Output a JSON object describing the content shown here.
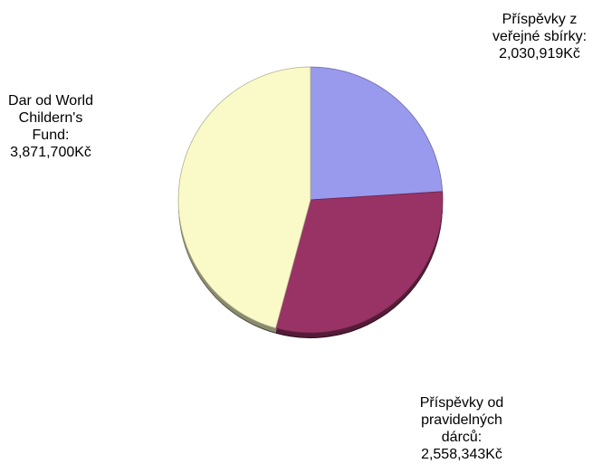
{
  "chart_data": {
    "type": "pie",
    "title": "",
    "legend": "none",
    "slices": [
      {
        "label": "Příspěvky z veřejné sbírky",
        "value": 2030919,
        "value_label": "2,030,919Kč",
        "color": "#9999ee"
      },
      {
        "label": "Příspěvky od pravidelných dárců",
        "value": 2558343,
        "value_label": "2,558,343Kč",
        "color": "#993366"
      },
      {
        "label": "Dar od World Childern's Fund",
        "value": 3871700,
        "value_label": "3,871,700Kč",
        "color": "#fafac8"
      }
    ]
  },
  "labels": [
    {
      "text": "Příspěvky z\nveřejné sbírky:\n2,030,919Kč"
    },
    {
      "text": "Příspěvky od\npravidelných\ndárců:\n2,558,343Kč"
    },
    {
      "text": "Dar od World\nChildern's\nFund:\n3,871,700Kč"
    }
  ]
}
